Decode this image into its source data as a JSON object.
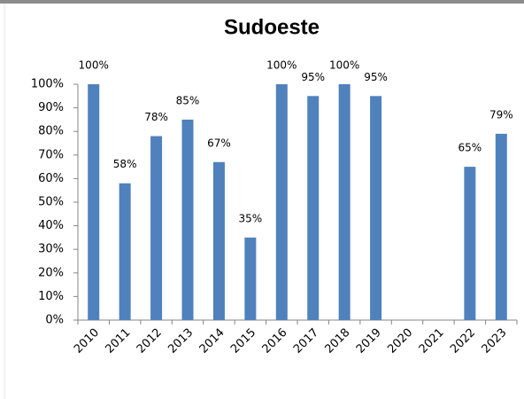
{
  "chart_data": {
    "type": "bar",
    "title": "Sudoeste",
    "categories": [
      "2010",
      "2011",
      "2012",
      "2013",
      "2014",
      "2015",
      "2016",
      "2017",
      "2018",
      "2019",
      "2020",
      "2021",
      "2022",
      "2023"
    ],
    "values": [
      100,
      58,
      78,
      85,
      67,
      35,
      100,
      95,
      100,
      95,
      null,
      null,
      65,
      79
    ],
    "value_labels": [
      "100%",
      "58%",
      "78%",
      "85%",
      "67%",
      "35%",
      "100%",
      "95%",
      "100%",
      "95%",
      null,
      null,
      "65%",
      "79%"
    ],
    "color": "#4f81bd",
    "ylim": [
      0,
      100
    ],
    "yticks": [
      {
        "value": 0,
        "label": "0%"
      },
      {
        "value": 10,
        "label": "10%"
      },
      {
        "value": 20,
        "label": "20%"
      },
      {
        "value": 30,
        "label": "30%"
      },
      {
        "value": 40,
        "label": "40%"
      },
      {
        "value": 50,
        "label": "50%"
      },
      {
        "value": 60,
        "label": "60%"
      },
      {
        "value": 70,
        "label": "70%"
      },
      {
        "value": 80,
        "label": "80%"
      },
      {
        "value": 90,
        "label": "90%"
      },
      {
        "value": 100,
        "label": "100%"
      }
    ],
    "grid": false
  }
}
